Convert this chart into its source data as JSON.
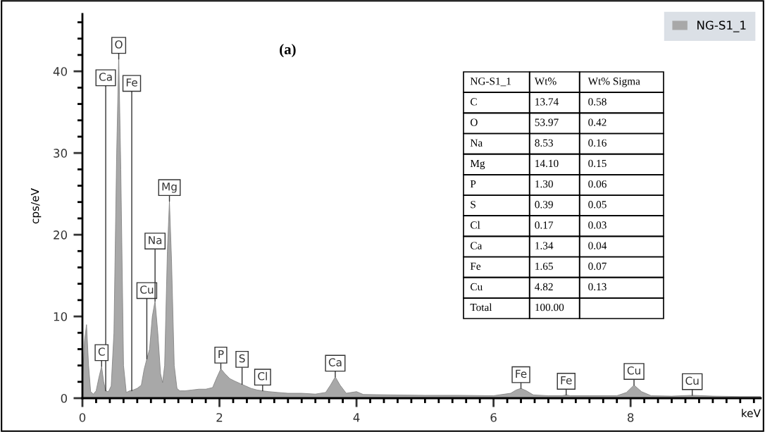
{
  "chart_data": {
    "type": "area",
    "ylabel": "cps/eV",
    "xlabel": "keV",
    "x": [
      0,
      0.03,
      0.06,
      0.09,
      0.12,
      0.16,
      0.2,
      0.24,
      0.28,
      0.31,
      0.34,
      0.38,
      0.42,
      0.46,
      0.5,
      0.53,
      0.56,
      0.6,
      0.64,
      0.69,
      0.74,
      0.8,
      0.86,
      0.9,
      0.94,
      0.98,
      1.02,
      1.06,
      1.1,
      1.14,
      1.17,
      1.2,
      1.24,
      1.27,
      1.3,
      1.34,
      1.38,
      1.42,
      1.5,
      1.6,
      1.7,
      1.8,
      1.9,
      1.96,
      2.02,
      2.08,
      2.15,
      2.22,
      2.3,
      2.38,
      2.46,
      2.55,
      2.63,
      2.72,
      2.85,
      3.0,
      3.2,
      3.4,
      3.55,
      3.62,
      3.69,
      3.76,
      3.85,
      4.0,
      4.1,
      4.5,
      5.0,
      5.5,
      6.0,
      6.25,
      6.33,
      6.4,
      6.48,
      6.58,
      6.8,
      7.0,
      7.06,
      7.12,
      7.4,
      7.8,
      7.94,
      8.05,
      8.16,
      8.3,
      8.6,
      8.9,
      9.2,
      9.6,
      9.9
    ],
    "series": [
      {
        "name": "NG-S1_1",
        "color": "#a8a8a8",
        "values": [
          2,
          7,
          9,
          4,
          0.8,
          0.5,
          0.9,
          2.5,
          3.9,
          2,
          0.9,
          0.8,
          1.5,
          8,
          30,
          42,
          28,
          4,
          0.7,
          0.9,
          1,
          1.2,
          1.6,
          3.5,
          4.8,
          6,
          10,
          11.9,
          8,
          3,
          1.9,
          4,
          18,
          24.1,
          17,
          4,
          1.2,
          0.9,
          0.9,
          1.0,
          1.1,
          1.1,
          1.3,
          2.5,
          3.6,
          3.0,
          2.4,
          2.1,
          1.8,
          1.5,
          1.2,
          1.0,
          0.9,
          0.8,
          0.7,
          0.6,
          0.6,
          0.5,
          0.7,
          1.6,
          2.6,
          1.6,
          0.6,
          0.8,
          0.45,
          0.4,
          0.35,
          0.35,
          0.3,
          0.6,
          1.0,
          1.2,
          0.9,
          0.4,
          0.3,
          0.3,
          0.4,
          0.3,
          0.3,
          0.3,
          0.7,
          1.6,
          0.8,
          0.3,
          0.25,
          0.35,
          0.25,
          0.2,
          0.2
        ]
      }
    ],
    "xlim": [
      0,
      9.9
    ],
    "xticks": [
      0,
      {
        "value": 0.2,
        "label": null
      },
      {
        "value": 0.4,
        "label": null
      },
      {
        "value": 0.6,
        "label": null
      },
      {
        "value": 0.8,
        "label": null
      },
      {
        "value": 1,
        "label": null
      },
      {
        "value": 1.2,
        "label": null
      },
      {
        "value": 1.4,
        "label": null
      },
      {
        "value": 1.6,
        "label": null
      },
      {
        "value": 1.8,
        "label": null
      },
      2,
      {
        "value": 2.2,
        "label": null
      },
      {
        "value": 2.4,
        "label": null
      },
      {
        "value": 2.6,
        "label": null
      },
      {
        "value": 2.8,
        "label": null
      },
      {
        "value": 3,
        "label": null
      },
      {
        "value": 3.2,
        "label": null
      },
      {
        "value": 3.4,
        "label": null
      },
      {
        "value": 3.6,
        "label": null
      },
      {
        "value": 3.8,
        "label": null
      },
      4,
      {
        "value": 4.2,
        "label": null
      },
      {
        "value": 4.4,
        "label": null
      },
      {
        "value": 4.6,
        "label": null
      },
      {
        "value": 4.8,
        "label": null
      },
      {
        "value": 5,
        "label": null
      },
      {
        "value": 5.2,
        "label": null
      },
      {
        "value": 5.4,
        "label": null
      },
      {
        "value": 5.6,
        "label": null
      },
      {
        "value": 5.8,
        "label": null
      },
      6,
      {
        "value": 6.2,
        "label": null
      },
      {
        "value": 6.4,
        "label": null
      },
      {
        "value": 6.6,
        "label": null
      },
      {
        "value": 6.8,
        "label": null
      },
      {
        "value": 7,
        "label": null
      },
      {
        "value": 7.2,
        "label": null
      },
      {
        "value": 7.4,
        "label": null
      },
      {
        "value": 7.6,
        "label": null
      },
      {
        "value": 7.8,
        "label": null
      },
      8,
      {
        "value": 8.2,
        "label": null
      },
      {
        "value": 8.4,
        "label": null
      },
      {
        "value": 8.6,
        "label": null
      },
      {
        "value": 8.8,
        "label": null
      },
      {
        "value": 9,
        "label": null
      },
      {
        "value": 9.2,
        "label": null
      },
      {
        "value": 9.4,
        "label": null
      },
      {
        "value": 9.6,
        "label": null
      },
      {
        "value": 9.8,
        "label": null
      }
    ],
    "ylim": [
      0,
      47
    ],
    "yticks": [
      0,
      {
        "value": 2,
        "label": null
      },
      {
        "value": 4,
        "label": null
      },
      {
        "value": 6,
        "label": null
      },
      {
        "value": 8,
        "label": null
      },
      10,
      {
        "value": 12,
        "label": null
      },
      {
        "value": 14,
        "label": null
      },
      {
        "value": 16,
        "label": null
      },
      {
        "value": 18,
        "label": null
      },
      20,
      {
        "value": 22,
        "label": null
      },
      {
        "value": 24,
        "label": null
      },
      {
        "value": 26,
        "label": null
      },
      {
        "value": 28,
        "label": null
      },
      30,
      {
        "value": 32,
        "label": null
      },
      {
        "value": 34,
        "label": null
      },
      {
        "value": 36,
        "label": null
      },
      {
        "value": 38,
        "label": null
      },
      40,
      {
        "value": 42,
        "label": null
      },
      {
        "value": 44,
        "label": null
      },
      {
        "value": 46,
        "label": null
      }
    ],
    "legend": "top right",
    "annotations": [
      {
        "text": "O",
        "x": 0.53,
        "y": 41.5
      },
      {
        "text": "Mg",
        "x": 1.27,
        "y": 24.1
      },
      {
        "text": "Na",
        "x": 1.06,
        "y": 11.9
      },
      {
        "text": "Cu",
        "x": 0.94,
        "y": 4.8
      },
      {
        "text": "C",
        "x": 0.28,
        "y": 3.9
      },
      {
        "text": "Ca",
        "x": 0.34,
        "y": 0.9
      },
      {
        "text": "Fe",
        "x": 0.72,
        "y": 0.9
      },
      {
        "text": "P",
        "x": 2.02,
        "y": 3.6
      },
      {
        "text": "S",
        "x": 2.33,
        "y": 1.7
      },
      {
        "text": "Cl",
        "x": 2.63,
        "y": 0.9
      },
      {
        "text": "Ca",
        "x": 3.69,
        "y": 2.6
      },
      {
        "text": "Fe",
        "x": 6.4,
        "y": 1.2
      },
      {
        "text": "Fe",
        "x": 7.06,
        "y": 0.4
      },
      {
        "text": "Cu",
        "x": 8.05,
        "y": 1.6
      },
      {
        "text": "Cu",
        "x": 8.9,
        "y": 0.35
      },
      "(a)",
      "NG-S1_1",
      "Wt%",
      "Wt% Sigma",
      "C",
      "13.74",
      "0.58",
      "O",
      "53.97",
      "0.42",
      "Na",
      "8.53",
      "0.16",
      "Mg",
      "14.10",
      "0.15",
      "P",
      "1.30",
      "0.06",
      "S",
      "0.39",
      "0.05",
      "Cl",
      "0.17",
      "0.03",
      "Ca",
      "1.34",
      "0.04",
      "Fe",
      "1.65",
      "0.07",
      "Cu",
      "4.82",
      "0.13",
      "Total",
      "100.00"
    ]
  }
}
